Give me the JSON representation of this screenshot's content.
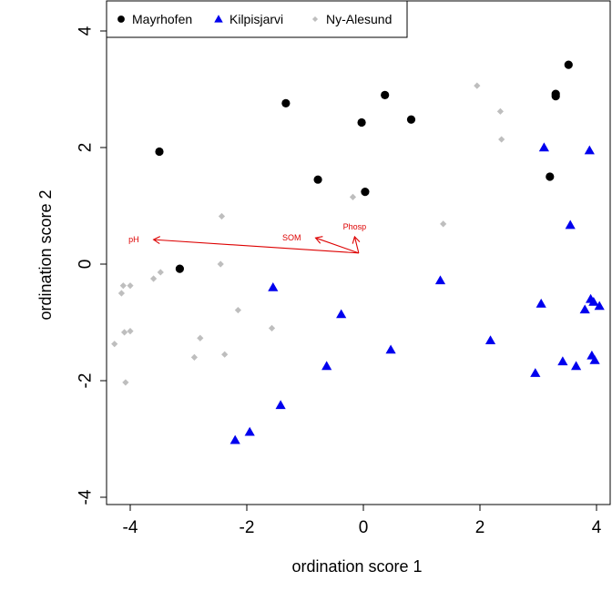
{
  "chart_data": {
    "type": "scatter",
    "title": "",
    "xlabel": "ordination score 1",
    "ylabel": "ordination score 2",
    "xlim": [
      -4.4,
      4.2
    ],
    "ylim": [
      -4.2,
      4.5
    ],
    "xticks": [
      -4,
      -2,
      0,
      2,
      4
    ],
    "yticks": [
      -4,
      -2,
      0,
      2,
      4
    ],
    "grid": false,
    "legend_position": "top-left",
    "series": [
      {
        "name": "Mayrhofen",
        "marker": "circle",
        "color": "#000000",
        "points": [
          [
            -3.5,
            1.93
          ],
          [
            -3.15,
            -0.08
          ],
          [
            -1.33,
            2.76
          ],
          [
            -0.78,
            1.45
          ],
          [
            -0.03,
            2.43
          ],
          [
            0.03,
            1.24
          ],
          [
            0.37,
            2.9
          ],
          [
            0.82,
            2.48
          ],
          [
            3.2,
            1.5
          ],
          [
            3.3,
            2.88
          ],
          [
            3.3,
            2.92
          ],
          [
            3.52,
            3.42
          ]
        ]
      },
      {
        "name": "Kilpisjarvi",
        "marker": "triangle",
        "color": "#0000ee",
        "points": [
          [
            -2.2,
            -3.02
          ],
          [
            -1.95,
            -2.88
          ],
          [
            -1.55,
            -0.4
          ],
          [
            -1.42,
            -2.42
          ],
          [
            -0.63,
            -1.75
          ],
          [
            -0.38,
            -0.86
          ],
          [
            0.47,
            -1.47
          ],
          [
            1.32,
            -0.28
          ],
          [
            2.18,
            -1.31
          ],
          [
            2.95,
            -1.87
          ],
          [
            3.05,
            -0.68
          ],
          [
            3.1,
            2.0
          ],
          [
            3.42,
            -1.67
          ],
          [
            3.55,
            0.67
          ],
          [
            3.65,
            -1.75
          ],
          [
            3.8,
            -0.78
          ],
          [
            3.88,
            1.95
          ],
          [
            3.9,
            -0.6
          ],
          [
            3.92,
            -1.57
          ],
          [
            3.95,
            -0.65
          ],
          [
            3.97,
            -1.65
          ],
          [
            4.05,
            -0.72
          ]
        ]
      },
      {
        "name": "Ny-Alesund",
        "marker": "diamond",
        "color": "#bebebe",
        "points": [
          [
            -4.27,
            -1.37
          ],
          [
            -4.15,
            -0.5
          ],
          [
            -4.12,
            -0.37
          ],
          [
            -4.1,
            -1.17
          ],
          [
            -4.08,
            -2.03
          ],
          [
            -4.0,
            -1.15
          ],
          [
            -4.0,
            -0.37
          ],
          [
            -3.6,
            -0.25
          ],
          [
            -3.48,
            -0.14
          ],
          [
            -2.9,
            -1.6
          ],
          [
            -2.8,
            -1.27
          ],
          [
            -2.45,
            0.0
          ],
          [
            -2.43,
            0.82
          ],
          [
            -2.38,
            -1.55
          ],
          [
            -2.15,
            -0.79
          ],
          [
            -1.57,
            -1.1
          ],
          [
            -0.18,
            1.15
          ],
          [
            1.37,
            0.69
          ],
          [
            1.95,
            3.06
          ],
          [
            2.35,
            2.62
          ],
          [
            2.37,
            2.14
          ]
        ]
      }
    ],
    "vectors": [
      {
        "label": "pH",
        "origin": [
          -0.08,
          0.19
        ],
        "end": [
          -3.6,
          0.42
        ]
      },
      {
        "label": "SOM",
        "origin": [
          -0.08,
          0.19
        ],
        "end": [
          -0.82,
          0.45
        ]
      },
      {
        "label": "Phosp",
        "origin": [
          -0.08,
          0.19
        ],
        "end": [
          -0.15,
          0.47
        ]
      }
    ],
    "vector_color": "#dd0000"
  }
}
